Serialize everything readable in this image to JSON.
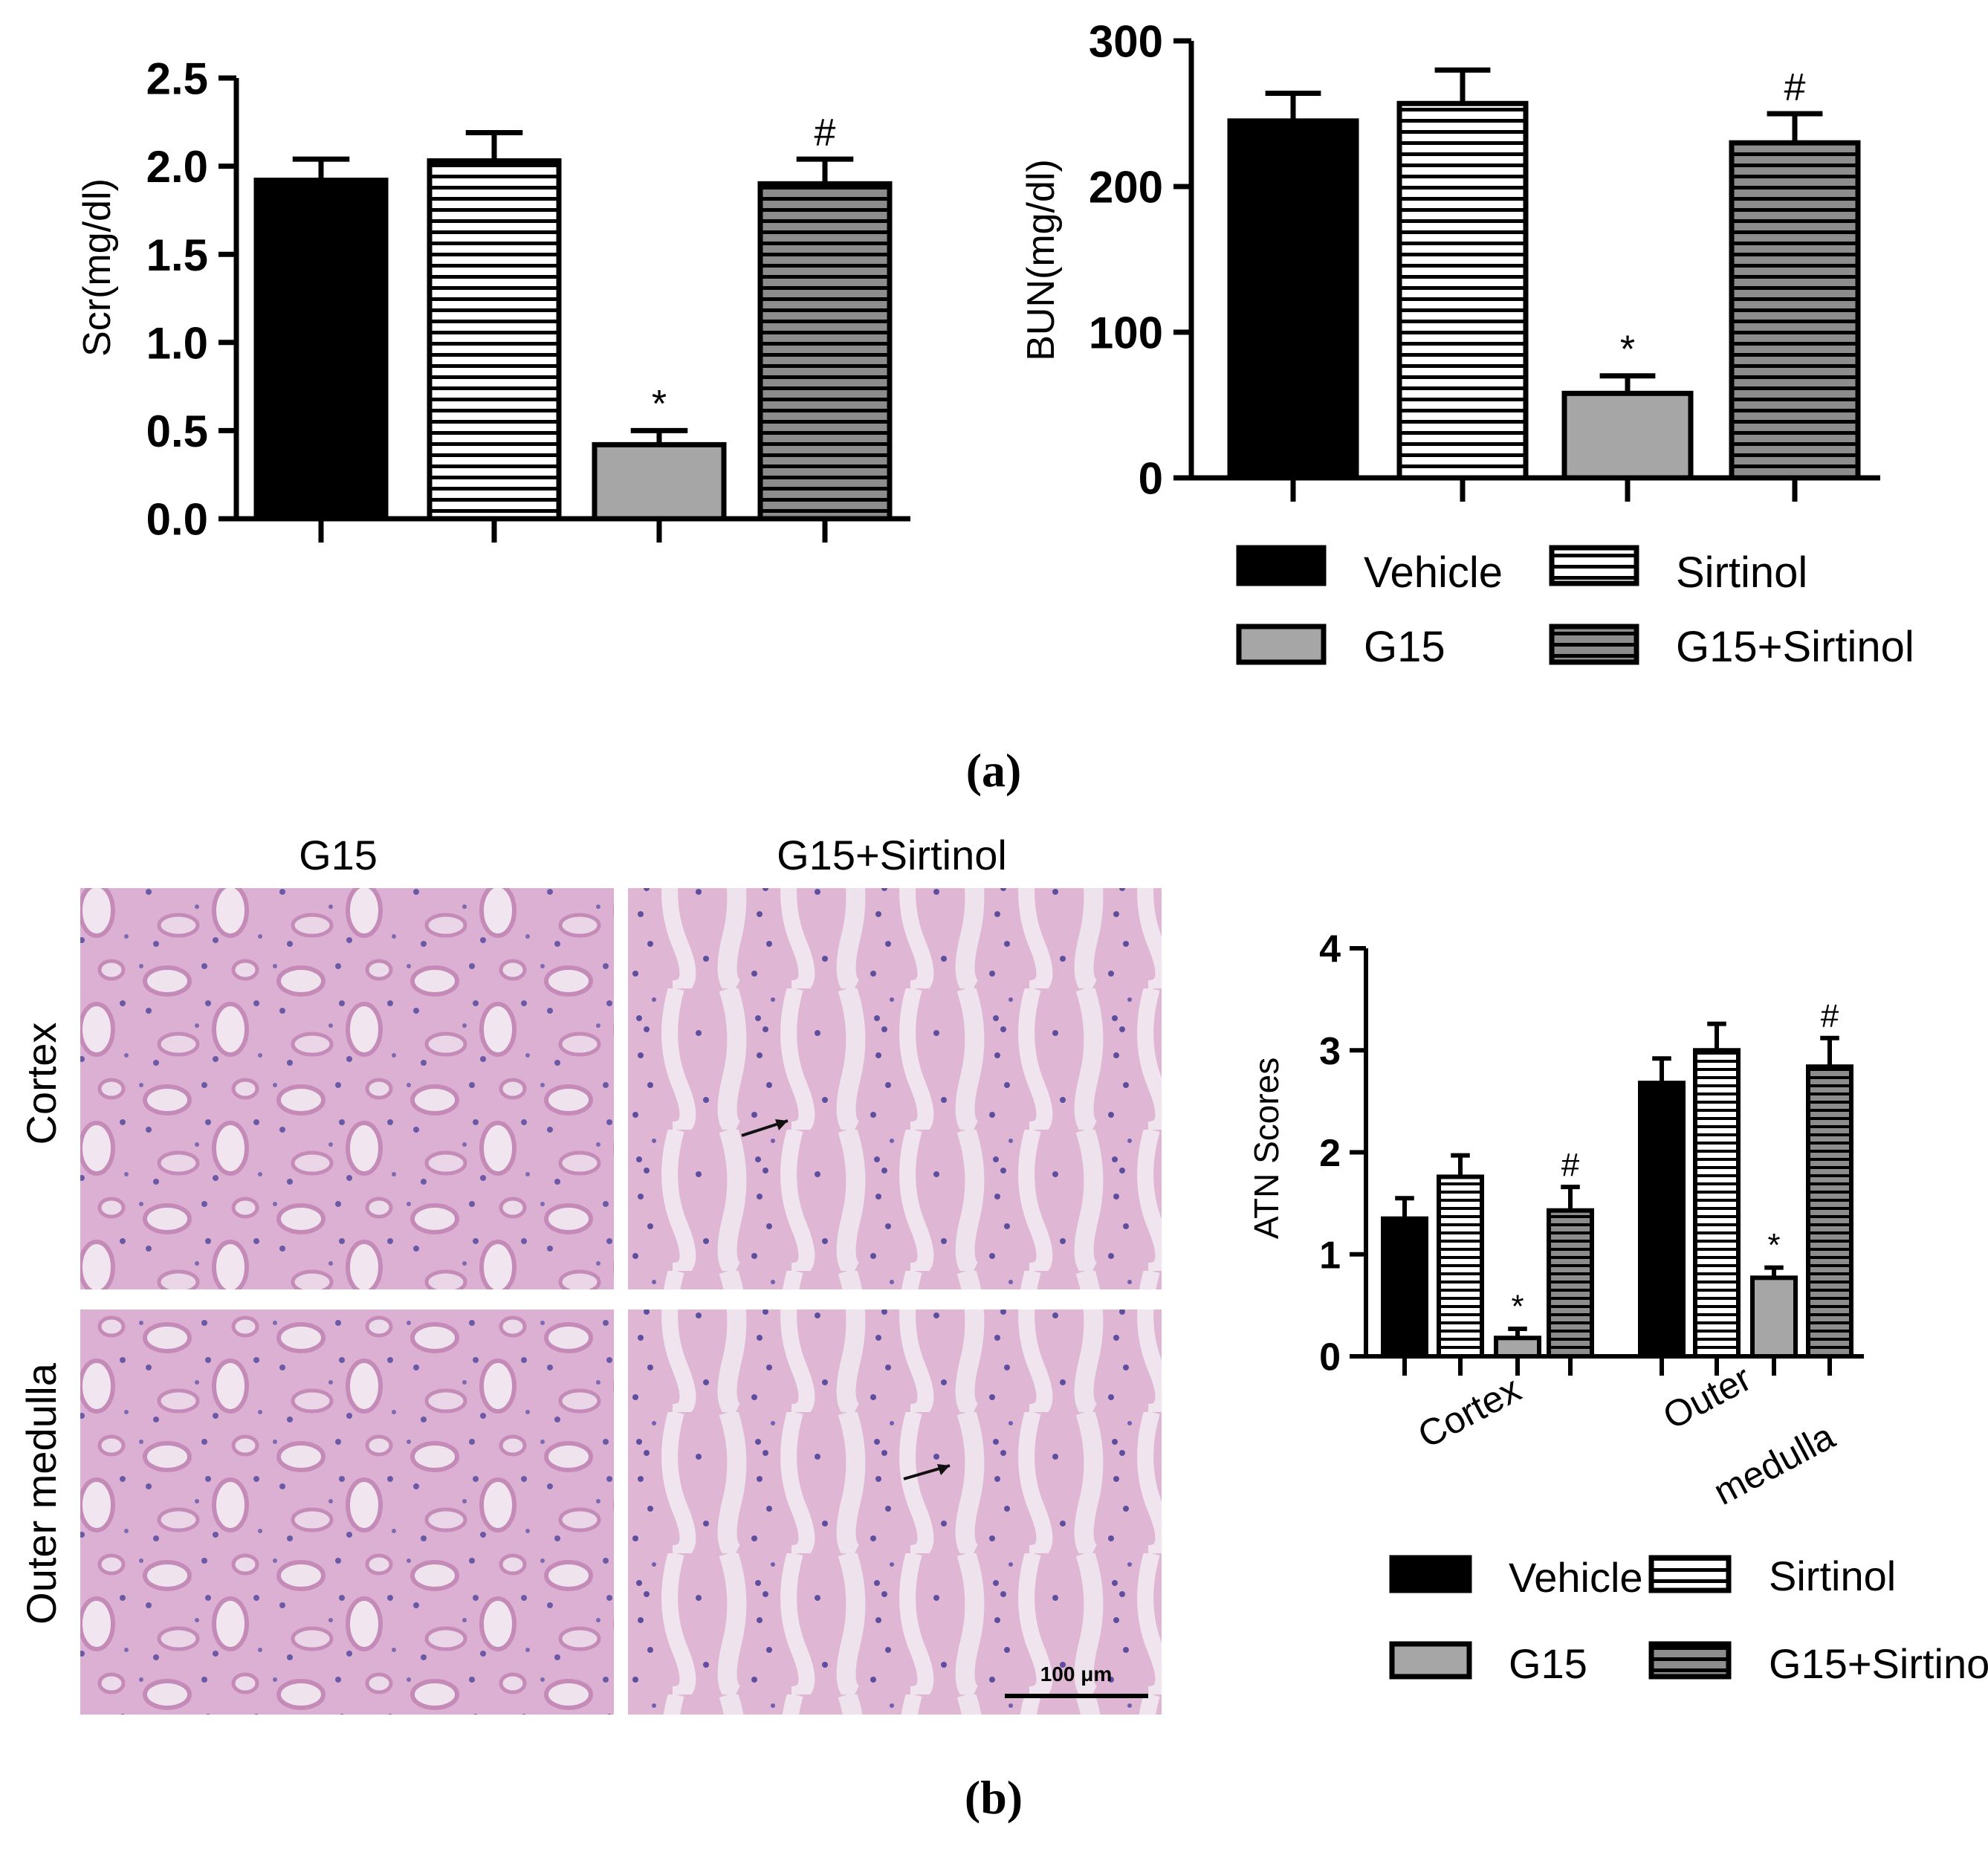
{
  "figure": {
    "label_a": "(a)",
    "label_b": "(b)"
  },
  "micrographs": {
    "col_labels": [
      "G15",
      "G15+Sirtinol"
    ],
    "row_labels": [
      "Cortex",
      "Outer medulla"
    ],
    "scale_bar": "100 μm"
  },
  "legend": {
    "entries": [
      "Vehicle",
      "Sirtinol",
      "G15",
      "G15+Sirtinol"
    ]
  },
  "colors": {
    "vehicle": "#000000",
    "sirtinol_fill": "#ffffff",
    "g15": "#a6a6a6",
    "g15_sirtinol": "#8c8c8c",
    "tissue_base": "#d9a9cf",
    "tissue_nuclei": "#6a5aa6"
  },
  "chart_data": [
    {
      "type": "bar",
      "ylabel": "Scr(mg/dl)",
      "ylim": [
        0,
        2.5
      ],
      "yticks": [
        0.0,
        0.5,
        1.0,
        1.5,
        2.0,
        2.5
      ],
      "ytick_labels": [
        "0.0",
        "0.5",
        "1.0",
        "1.5",
        "2.0",
        "2.5"
      ],
      "categories": [
        "Vehicle",
        "Sirtinol",
        "G15",
        "G15+Sirtinol"
      ],
      "values": [
        1.92,
        2.03,
        0.42,
        1.9
      ],
      "errors": [
        0.12,
        0.16,
        0.08,
        0.14
      ],
      "annotations": [
        "",
        "",
        "*",
        "#"
      ]
    },
    {
      "type": "bar",
      "ylabel": "BUN(mg/dl)",
      "ylim": [
        0,
        300
      ],
      "yticks": [
        0,
        100,
        200,
        300
      ],
      "ytick_labels": [
        "0",
        "100",
        "200",
        "300"
      ],
      "categories": [
        "Vehicle",
        "Sirtinol",
        "G15",
        "G15+Sirtinol"
      ],
      "values": [
        245,
        257,
        58,
        230
      ],
      "errors": [
        19,
        23,
        12,
        20
      ],
      "annotations": [
        "",
        "",
        "*",
        "#"
      ]
    },
    {
      "type": "bar",
      "ylabel": "ATN Scores",
      "ylim": [
        0,
        4
      ],
      "yticks": [
        0,
        1,
        2,
        3,
        4
      ],
      "ytick_labels": [
        "0",
        "1",
        "2",
        "3",
        "4"
      ],
      "groups": [
        "Cortex",
        "Outer medulla"
      ],
      "group_label_lines": [
        [
          "Cortex"
        ],
        [
          "Outer",
          "medulla"
        ]
      ],
      "series": [
        {
          "name": "Vehicle",
          "values": [
            1.35,
            2.68
          ],
          "errors": [
            0.2,
            0.24
          ]
        },
        {
          "name": "Sirtinol",
          "values": [
            1.76,
            3.0
          ],
          "errors": [
            0.21,
            0.26
          ]
        },
        {
          "name": "G15",
          "values": [
            0.18,
            0.77
          ],
          "errors": [
            0.09,
            0.1
          ]
        },
        {
          "name": "G15+Sirtinol",
          "values": [
            1.43,
            2.84
          ],
          "errors": [
            0.23,
            0.28
          ]
        }
      ],
      "annotations": [
        [
          "",
          "",
          "*",
          "#"
        ],
        [
          "",
          "",
          "*",
          "#"
        ]
      ]
    }
  ]
}
